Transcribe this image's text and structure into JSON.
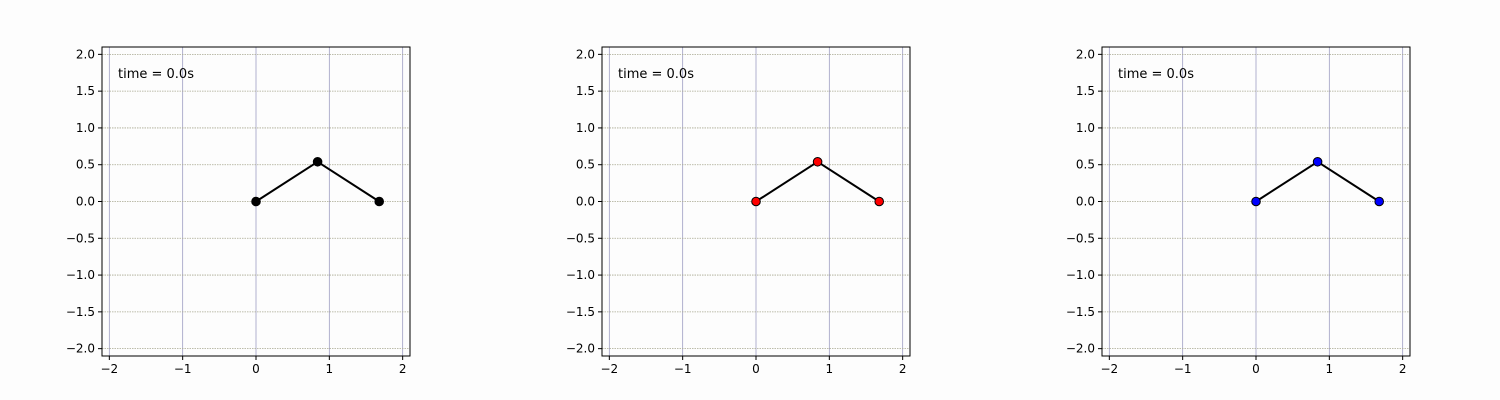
{
  "chart_data": [
    {
      "type": "line",
      "annotation": "time = 0.0s",
      "x": [
        0,
        0.84,
        1.68
      ],
      "y": [
        0,
        0.54,
        0
      ],
      "xlim": [
        -2.1,
        2.1
      ],
      "ylim": [
        -2.1,
        2.1
      ],
      "xticks": [
        -2,
        -1,
        0,
        1,
        2
      ],
      "yticks": [
        2.0,
        1.5,
        1.0,
        0.5,
        0.0,
        -0.5,
        -1.0,
        -1.5,
        -2.0
      ],
      "xtick_labels": [
        "−2",
        "−1",
        "0",
        "1",
        "2"
      ],
      "ytick_labels": [
        "2.0",
        "1.5",
        "1.0",
        "0.5",
        "0.0",
        "−0.5",
        "−1.0",
        "−1.5",
        "−2.0"
      ],
      "grid": true,
      "line_color": "#000000",
      "marker_color": "#000000"
    },
    {
      "type": "line",
      "annotation": "time = 0.0s",
      "x": [
        0,
        0.84,
        1.68
      ],
      "y": [
        0,
        0.54,
        0
      ],
      "xlim": [
        -2.1,
        2.1
      ],
      "ylim": [
        -2.1,
        2.1
      ],
      "xticks": [
        -2,
        -1,
        0,
        1,
        2
      ],
      "yticks": [
        2.0,
        1.5,
        1.0,
        0.5,
        0.0,
        -0.5,
        -1.0,
        -1.5,
        -2.0
      ],
      "xtick_labels": [
        "−2",
        "−1",
        "0",
        "1",
        "2"
      ],
      "ytick_labels": [
        "2.0",
        "1.5",
        "1.0",
        "0.5",
        "0.0",
        "−0.5",
        "−1.0",
        "−1.5",
        "−2.0"
      ],
      "grid": true,
      "line_color": "#000000",
      "marker_color": "#ff0000"
    },
    {
      "type": "line",
      "annotation": "time = 0.0s",
      "x": [
        0,
        0.84,
        1.68
      ],
      "y": [
        0,
        0.54,
        0
      ],
      "xlim": [
        -2.1,
        2.1
      ],
      "ylim": [
        -2.1,
        2.1
      ],
      "xticks": [
        -2,
        -1,
        0,
        1,
        2
      ],
      "yticks": [
        2.0,
        1.5,
        1.0,
        0.5,
        0.0,
        -0.5,
        -1.0,
        -1.5,
        -2.0
      ],
      "xtick_labels": [
        "−2",
        "−1",
        "0",
        "1",
        "2"
      ],
      "ytick_labels": [
        "2.0",
        "1.5",
        "1.0",
        "0.5",
        "0.0",
        "−0.5",
        "−1.0",
        "−1.5",
        "−2.0"
      ],
      "grid": true,
      "line_color": "#000000",
      "marker_color": "#0000ff"
    }
  ]
}
